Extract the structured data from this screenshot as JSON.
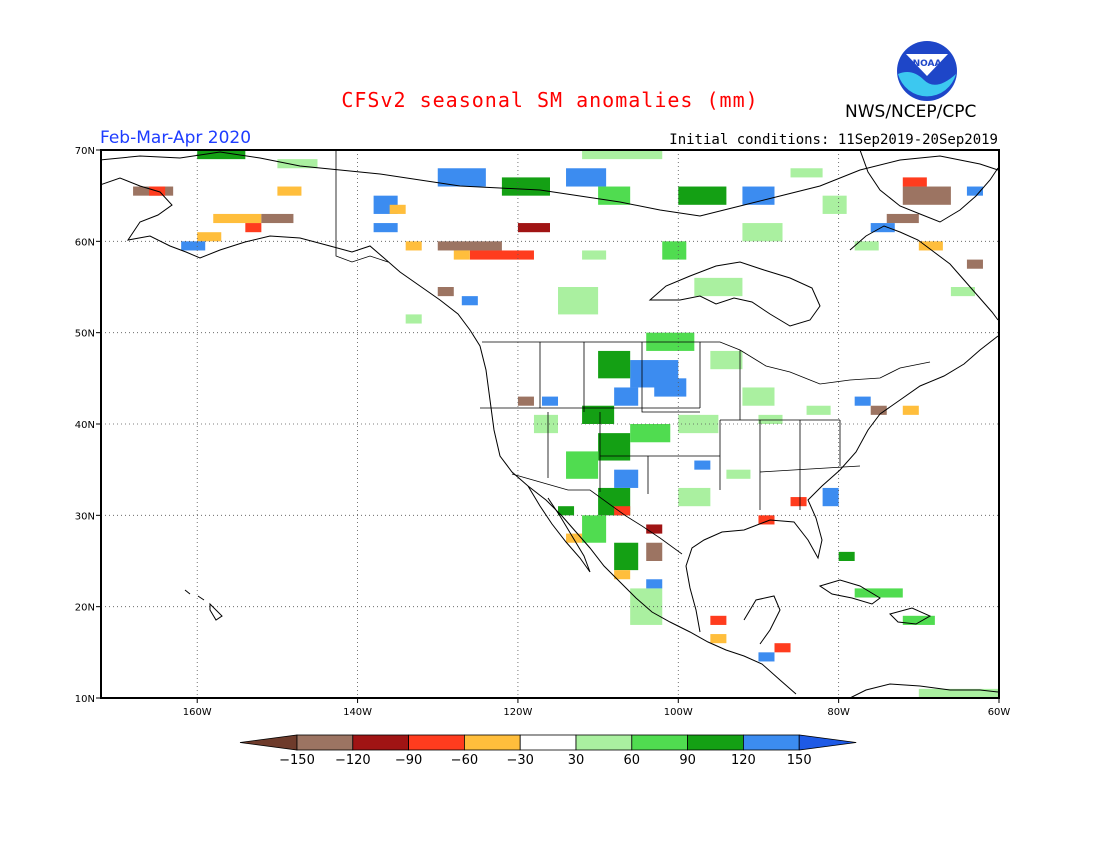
{
  "header": {
    "title": "CFSv2 seasonal SM anomalies (mm)",
    "period": "Feb-Mar-Apr 2020",
    "initial_conditions": "Initial conditions: 11Sep2019-20Sep2019",
    "agency": "NWS/NCEP/CPC",
    "logo_text": "NOAA",
    "logo_icon": "noaa-logo-icon"
  },
  "map": {
    "lon_range": [
      -172,
      -60
    ],
    "lat_range": [
      10,
      70
    ],
    "lon_ticks": [
      {
        "value": -160,
        "label": "160W"
      },
      {
        "value": -140,
        "label": "140W"
      },
      {
        "value": -120,
        "label": "120W"
      },
      {
        "value": -100,
        "label": "100W"
      },
      {
        "value": -80,
        "label": "80W"
      },
      {
        "value": -60,
        "label": "60W"
      }
    ],
    "lat_ticks": [
      {
        "value": 10,
        "label": "10N"
      },
      {
        "value": 20,
        "label": "20N"
      },
      {
        "value": 30,
        "label": "30N"
      },
      {
        "value": 40,
        "label": "40N"
      },
      {
        "value": 50,
        "label": "50N"
      },
      {
        "value": 60,
        "label": "60N"
      },
      {
        "value": 70,
        "label": "70N"
      }
    ],
    "gridlines": true,
    "colors": {
      "coast": "#000000",
      "grid": "#555555"
    },
    "anomaly_cells": [
      {
        "lon": -106,
        "lat": 47,
        "w": 6,
        "h": 3,
        "value": 140
      },
      {
        "lon": -103,
        "lat": 45,
        "w": 4,
        "h": 2,
        "value": 140
      },
      {
        "lon": -108,
        "lat": 44,
        "w": 3,
        "h": 2,
        "value": 130
      },
      {
        "lon": -110,
        "lat": 48,
        "w": 4,
        "h": 3,
        "value": 100
      },
      {
        "lon": -104,
        "lat": 50,
        "w": 6,
        "h": 2,
        "value": 75
      },
      {
        "lon": -112,
        "lat": 42,
        "w": 4,
        "h": 2,
        "value": 100
      },
      {
        "lon": -110,
        "lat": 39,
        "w": 4,
        "h": 3,
        "value": 100
      },
      {
        "lon": -114,
        "lat": 37,
        "w": 4,
        "h": 3,
        "value": 75
      },
      {
        "lon": -106,
        "lat": 40,
        "w": 5,
        "h": 2,
        "value": 75
      },
      {
        "lon": -100,
        "lat": 41,
        "w": 5,
        "h": 2,
        "value": 45
      },
      {
        "lon": -110,
        "lat": 33,
        "w": 4,
        "h": 3,
        "value": 100
      },
      {
        "lon": -108,
        "lat": 35,
        "w": 3,
        "h": 2,
        "value": 140
      },
      {
        "lon": -112,
        "lat": 30,
        "w": 3,
        "h": 3,
        "value": 75
      },
      {
        "lon": -108,
        "lat": 27,
        "w": 3,
        "h": 3,
        "value": 100
      },
      {
        "lon": -106,
        "lat": 22,
        "w": 4,
        "h": 4,
        "value": 45
      },
      {
        "lon": -100,
        "lat": 33,
        "w": 4,
        "h": 2,
        "value": 45
      },
      {
        "lon": -118,
        "lat": 41,
        "w": 3,
        "h": 2,
        "value": 45
      },
      {
        "lon": -92,
        "lat": 44,
        "w": 4,
        "h": 2,
        "value": 45
      },
      {
        "lon": -96,
        "lat": 48,
        "w": 4,
        "h": 2,
        "value": 45
      },
      {
        "lon": -115,
        "lat": 55,
        "w": 5,
        "h": 3,
        "value": 45
      },
      {
        "lon": -112,
        "lat": 59,
        "w": 3,
        "h": 1,
        "value": 45
      },
      {
        "lon": -98,
        "lat": 56,
        "w": 6,
        "h": 2,
        "value": 45
      },
      {
        "lon": -102,
        "lat": 60,
        "w": 3,
        "h": 2,
        "value": 75
      },
      {
        "lon": -92,
        "lat": 62,
        "w": 5,
        "h": 2,
        "value": 45
      },
      {
        "lon": -130,
        "lat": 68,
        "w": 6,
        "h": 2,
        "value": 140
      },
      {
        "lon": -122,
        "lat": 67,
        "w": 6,
        "h": 2,
        "value": 100
      },
      {
        "lon": -114,
        "lat": 68,
        "w": 5,
        "h": 2,
        "value": 140
      },
      {
        "lon": -110,
        "lat": 66,
        "w": 4,
        "h": 2,
        "value": 75
      },
      {
        "lon": -100,
        "lat": 66,
        "w": 6,
        "h": 2,
        "value": 100
      },
      {
        "lon": -92,
        "lat": 66,
        "w": 4,
        "h": 2,
        "value": 140
      },
      {
        "lon": -112,
        "lat": 70,
        "w": 10,
        "h": 1,
        "value": 45
      },
      {
        "lon": -86,
        "lat": 68,
        "w": 4,
        "h": 1,
        "value": 45
      },
      {
        "lon": -82,
        "lat": 65,
        "w": 3,
        "h": 2,
        "value": 45
      },
      {
        "lon": -138,
        "lat": 65,
        "w": 3,
        "h": 2,
        "value": 140
      },
      {
        "lon": -160,
        "lat": 70,
        "w": 6,
        "h": 1,
        "value": 100
      },
      {
        "lon": -150,
        "lat": 69,
        "w": 5,
        "h": 1,
        "value": 45
      },
      {
        "lon": -138,
        "lat": 62,
        "w": 3,
        "h": 1,
        "value": 140
      },
      {
        "lon": -130,
        "lat": 60,
        "w": 8,
        "h": 1,
        "value": -140
      },
      {
        "lon": -126,
        "lat": 59,
        "w": 8,
        "h": 1,
        "value": -75
      },
      {
        "lon": -128,
        "lat": 59,
        "w": 2,
        "h": 1,
        "value": -45
      },
      {
        "lon": -120,
        "lat": 62,
        "w": 4,
        "h": 1,
        "value": -110
      },
      {
        "lon": -168,
        "lat": 66,
        "w": 5,
        "h": 1,
        "value": -140
      },
      {
        "lon": -166,
        "lat": 66,
        "w": 2,
        "h": 1,
        "value": -75
      },
      {
        "lon": -158,
        "lat": 63,
        "w": 6,
        "h": 1,
        "value": -45
      },
      {
        "lon": -152,
        "lat": 63,
        "w": 4,
        "h": 1,
        "value": -140
      },
      {
        "lon": -160,
        "lat": 61,
        "w": 3,
        "h": 1,
        "value": -45
      },
      {
        "lon": -154,
        "lat": 62,
        "w": 2,
        "h": 1,
        "value": -75
      },
      {
        "lon": -150,
        "lat": 66,
        "w": 3,
        "h": 1,
        "value": -45
      },
      {
        "lon": -136,
        "lat": 64,
        "w": 2,
        "h": 1,
        "value": -45
      },
      {
        "lon": -162,
        "lat": 60,
        "w": 3,
        "h": 1,
        "value": 140
      },
      {
        "lon": -134,
        "lat": 60,
        "w": 2,
        "h": 1,
        "value": -45
      },
      {
        "lon": -72,
        "lat": 66,
        "w": 6,
        "h": 2,
        "value": -140
      },
      {
        "lon": -72,
        "lat": 67,
        "w": 3,
        "h": 1,
        "value": -75
      },
      {
        "lon": -74,
        "lat": 63,
        "w": 4,
        "h": 1,
        "value": -140
      },
      {
        "lon": -76,
        "lat": 62,
        "w": 3,
        "h": 1,
        "value": 140
      },
      {
        "lon": -70,
        "lat": 60,
        "w": 3,
        "h": 1,
        "value": -45
      },
      {
        "lon": -64,
        "lat": 58,
        "w": 2,
        "h": 1,
        "value": -140
      },
      {
        "lon": -64,
        "lat": 66,
        "w": 2,
        "h": 1,
        "value": 140
      },
      {
        "lon": -78,
        "lat": 60,
        "w": 3,
        "h": 1,
        "value": 45
      },
      {
        "lon": -66,
        "lat": 55,
        "w": 3,
        "h": 1,
        "value": 45
      },
      {
        "lon": -76,
        "lat": 42,
        "w": 2,
        "h": 1,
        "value": -140
      },
      {
        "lon": -72,
        "lat": 42,
        "w": 2,
        "h": 1,
        "value": -45
      },
      {
        "lon": -78,
        "lat": 43,
        "w": 2,
        "h": 1,
        "value": 140
      },
      {
        "lon": -84,
        "lat": 42,
        "w": 3,
        "h": 1,
        "value": 45
      },
      {
        "lon": -90,
        "lat": 41,
        "w": 3,
        "h": 1,
        "value": 45
      },
      {
        "lon": -82,
        "lat": 33,
        "w": 2,
        "h": 2,
        "value": 140
      },
      {
        "lon": -86,
        "lat": 32,
        "w": 2,
        "h": 1,
        "value": -75
      },
      {
        "lon": -90,
        "lat": 30,
        "w": 2,
        "h": 1,
        "value": -75
      },
      {
        "lon": -104,
        "lat": 29,
        "w": 2,
        "h": 1,
        "value": -110
      },
      {
        "lon": -104,
        "lat": 27,
        "w": 2,
        "h": 2,
        "value": -140
      },
      {
        "lon": -108,
        "lat": 24,
        "w": 2,
        "h": 1,
        "value": -45
      },
      {
        "lon": -104,
        "lat": 23,
        "w": 2,
        "h": 1,
        "value": 140
      },
      {
        "lon": -96,
        "lat": 19,
        "w": 2,
        "h": 1,
        "value": -75
      },
      {
        "lon": -96,
        "lat": 17,
        "w": 2,
        "h": 1,
        "value": -45
      },
      {
        "lon": -88,
        "lat": 16,
        "w": 2,
        "h": 1,
        "value": -75
      },
      {
        "lon": -90,
        "lat": 15,
        "w": 2,
        "h": 1,
        "value": 140
      },
      {
        "lon": -108,
        "lat": 31,
        "w": 2,
        "h": 1,
        "value": -75
      },
      {
        "lon": -115,
        "lat": 31,
        "w": 2,
        "h": 1,
        "value": 100
      },
      {
        "lon": -114,
        "lat": 28,
        "w": 2,
        "h": 1,
        "value": -45
      },
      {
        "lon": -120,
        "lat": 43,
        "w": 2,
        "h": 1,
        "value": -140
      },
      {
        "lon": -117,
        "lat": 43,
        "w": 2,
        "h": 1,
        "value": 140
      },
      {
        "lon": -94,
        "lat": 35,
        "w": 3,
        "h": 1,
        "value": 45
      },
      {
        "lon": -98,
        "lat": 36,
        "w": 2,
        "h": 1,
        "value": 140
      },
      {
        "lon": -130,
        "lat": 55,
        "w": 2,
        "h": 1,
        "value": -140
      },
      {
        "lon": -127,
        "lat": 54,
        "w": 2,
        "h": 1,
        "value": 140
      },
      {
        "lon": -134,
        "lat": 52,
        "w": 2,
        "h": 1,
        "value": 45
      },
      {
        "lon": -80,
        "lat": 26,
        "w": 2,
        "h": 1,
        "value": 100
      },
      {
        "lon": -78,
        "lat": 22,
        "w": 6,
        "h": 1,
        "value": 75
      },
      {
        "lon": -72,
        "lat": 19,
        "w": 4,
        "h": 1,
        "value": 75
      },
      {
        "lon": -70,
        "lat": 11,
        "w": 12,
        "h": 1,
        "value": 45
      }
    ]
  },
  "colorbar": {
    "labels": [
      "−150",
      "−120",
      "−90",
      "−60",
      "−30",
      "30",
      "60",
      "90",
      "120",
      "150"
    ],
    "colors": [
      "#6e3b2b",
      "#9c7462",
      "#a01414",
      "#ff3c1e",
      "#ffbe3c",
      "#ffffff",
      "#aaf0a0",
      "#50dc50",
      "#14a014",
      "#3c8cf0",
      "#1e5ae6"
    ],
    "thresholds": [
      -150,
      -120,
      -90,
      -60,
      -30,
      30,
      60,
      90,
      120,
      150
    ]
  }
}
